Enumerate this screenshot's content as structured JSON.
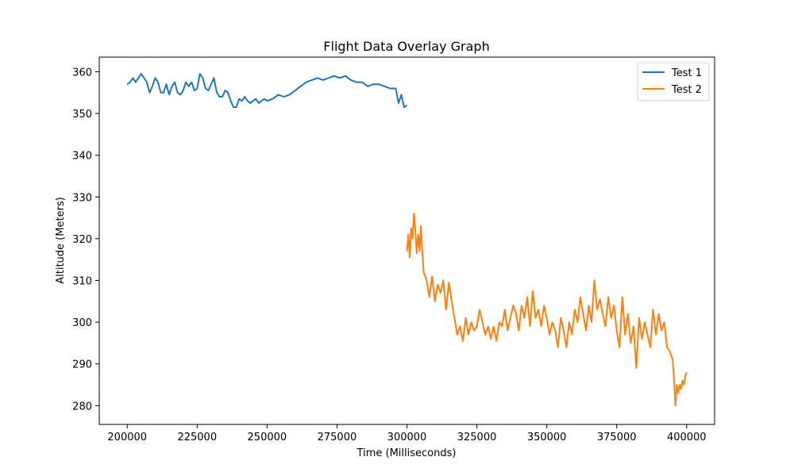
{
  "chart_data": {
    "type": "line",
    "title": "Flight Data Overlay Graph",
    "xlabel": "Time (Milliseconds)",
    "ylabel": "Altitude (Meters)",
    "xlim": [
      190000,
      410000
    ],
    "ylim": [
      275.5,
      363.5
    ],
    "xticks": [
      200000,
      225000,
      250000,
      275000,
      300000,
      325000,
      350000,
      375000,
      400000
    ],
    "yticks": [
      280,
      290,
      300,
      310,
      320,
      330,
      340,
      350,
      360
    ],
    "grid": false,
    "legend_position": "top-right",
    "series": [
      {
        "name": "Test 1",
        "color": "#1f77b4",
        "x": [
          200000,
          201000,
          202000,
          203000,
          204000,
          205000,
          206000,
          207000,
          208000,
          209000,
          210000,
          211000,
          212000,
          213000,
          214000,
          215000,
          216000,
          217000,
          218000,
          219000,
          220000,
          221000,
          222000,
          223000,
          224000,
          225000,
          226000,
          227000,
          228000,
          229000,
          230000,
          231000,
          232000,
          233000,
          234000,
          235000,
          236000,
          237000,
          238000,
          239000,
          240000,
          241000,
          242000,
          243000,
          244000,
          245000,
          246000,
          247000,
          248000,
          249000,
          250000,
          252000,
          254000,
          256000,
          258000,
          260000,
          262000,
          264000,
          266000,
          268000,
          270000,
          272000,
          274000,
          276000,
          278000,
          280000,
          282000,
          284000,
          286000,
          288000,
          290000,
          292000,
          294000,
          296000,
          297000,
          298000,
          299000,
          300000
        ],
        "y": [
          357,
          357.5,
          358.5,
          357.5,
          358.5,
          359.5,
          358.5,
          357.5,
          355,
          356.5,
          358.5,
          357.5,
          355,
          355,
          357,
          354.5,
          356.5,
          357.5,
          355,
          354.5,
          355.5,
          357.5,
          356.5,
          357.5,
          355.5,
          356,
          359.5,
          358.5,
          356,
          355.5,
          357,
          358.5,
          355,
          354,
          354,
          355.5,
          355,
          353,
          351.5,
          351.5,
          353.5,
          353,
          354,
          353,
          352.5,
          353,
          353.5,
          352.5,
          353,
          353.5,
          353,
          353.5,
          354.5,
          354,
          354.5,
          355.5,
          356.5,
          357.5,
          358,
          358.5,
          358,
          358.5,
          359,
          358.5,
          359,
          358,
          357.5,
          357.5,
          356.5,
          357,
          357,
          356.5,
          356,
          356,
          352.5,
          354.5,
          351.5,
          352
        ]
      },
      {
        "name": "Test 2",
        "color": "#ff7f0e",
        "x": [
          300000,
          300500,
          301000,
          301500,
          302000,
          302500,
          303000,
          303500,
          304000,
          304500,
          305000,
          305500,
          306000,
          307000,
          308000,
          309000,
          310000,
          311000,
          312000,
          313000,
          314000,
          315000,
          316000,
          317000,
          318000,
          319000,
          320000,
          321000,
          322000,
          323000,
          324000,
          325000,
          326000,
          327000,
          328000,
          329000,
          330000,
          331000,
          332000,
          333000,
          334000,
          335000,
          336000,
          337000,
          338000,
          339000,
          340000,
          341000,
          342000,
          343000,
          344000,
          345000,
          346000,
          347000,
          348000,
          349000,
          350000,
          351000,
          352000,
          353000,
          354000,
          355000,
          356000,
          357000,
          358000,
          359000,
          360000,
          361000,
          362000,
          363000,
          364000,
          365000,
          366000,
          367000,
          368000,
          369000,
          370000,
          371000,
          372000,
          373000,
          374000,
          375000,
          376000,
          377000,
          378000,
          379000,
          380000,
          381000,
          382000,
          383000,
          384000,
          385000,
          386000,
          387000,
          388000,
          389000,
          390000,
          391000,
          392000,
          393000,
          394000,
          395000,
          395500,
          396000,
          396500,
          397000,
          397500,
          398000,
          398500,
          399000,
          399500,
          400000
        ],
        "y": [
          317,
          321,
          315.5,
          322.5,
          320,
          326,
          322,
          316.5,
          321,
          317,
          323,
          317,
          312,
          310,
          306,
          311,
          305,
          309,
          307,
          310,
          303,
          309.5,
          305,
          301,
          297,
          299,
          295.5,
          301,
          297,
          300,
          298,
          299,
          303,
          300,
          297,
          299,
          296,
          299,
          295.5,
          300,
          299,
          303,
          298,
          301,
          304,
          302,
          298,
          304,
          301,
          306,
          299,
          307.5,
          301,
          303,
          299,
          304,
          301,
          297,
          300,
          298,
          294,
          301,
          298,
          294,
          300,
          297,
          303,
          300,
          306,
          302,
          298,
          304,
          300,
          310,
          303,
          305.5,
          302,
          299,
          306,
          301,
          304,
          298,
          294,
          306,
          297,
          302,
          295,
          299,
          289,
          301,
          296,
          300,
          297,
          294,
          303,
          297,
          302,
          298,
          300,
          294,
          293,
          291,
          286,
          280,
          285,
          283,
          285,
          284,
          286,
          285,
          287,
          288
        ]
      }
    ]
  }
}
